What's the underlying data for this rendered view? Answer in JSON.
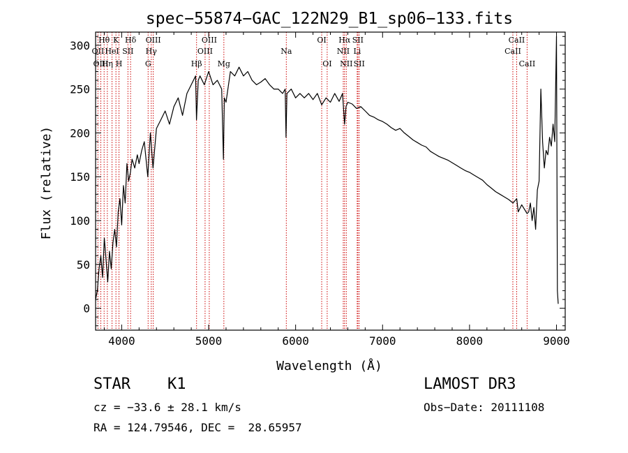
{
  "chart_data": {
    "type": "line",
    "title": "spec−55874−GAC_122N29_B1_sp06−133.fits",
    "xlabel": "Wavelength (Å)",
    "ylabel": "Flux (relative)",
    "xlim": [
      3700,
      9100
    ],
    "ylim": [
      -25,
      315
    ],
    "xticks": [
      4000,
      5000,
      6000,
      7000,
      8000,
      9000
    ],
    "yticks": [
      0,
      50,
      100,
      150,
      200,
      250,
      300
    ],
    "series": [
      {
        "name": "flux",
        "x": [
          3700,
          3720,
          3740,
          3760,
          3780,
          3800,
          3820,
          3840,
          3860,
          3880,
          3900,
          3920,
          3940,
          3960,
          3980,
          4000,
          4020,
          4040,
          4060,
          4080,
          4100,
          4120,
          4150,
          4180,
          4200,
          4230,
          4260,
          4300,
          4330,
          4360,
          4400,
          4450,
          4500,
          4550,
          4600,
          4650,
          4700,
          4750,
          4800,
          4850,
          4860,
          4880,
          4900,
          4950,
          5000,
          5050,
          5100,
          5150,
          5170,
          5180,
          5200,
          5250,
          5300,
          5350,
          5400,
          5450,
          5500,
          5550,
          5600,
          5650,
          5700,
          5750,
          5800,
          5850,
          5880,
          5890,
          5900,
          5950,
          6000,
          6050,
          6100,
          6150,
          6200,
          6250,
          6300,
          6350,
          6400,
          6450,
          6500,
          6540,
          6563,
          6580,
          6600,
          6650,
          6700,
          6750,
          6800,
          6850,
          6900,
          6950,
          7000,
          7050,
          7100,
          7150,
          7200,
          7250,
          7300,
          7350,
          7400,
          7450,
          7500,
          7550,
          7600,
          7650,
          7700,
          7750,
          7800,
          7850,
          7900,
          7950,
          8000,
          8050,
          8100,
          8150,
          8200,
          8250,
          8300,
          8350,
          8400,
          8450,
          8500,
          8542,
          8560,
          8600,
          8662,
          8680,
          8700,
          8720,
          8740,
          8760,
          8780,
          8800,
          8820,
          8840,
          8860,
          8880,
          8900,
          8920,
          8940,
          8960,
          8980,
          9000,
          9010,
          9020
        ],
        "y": [
          10,
          20,
          45,
          60,
          35,
          80,
          55,
          30,
          65,
          45,
          75,
          90,
          70,
          110,
          125,
          95,
          140,
          120,
          165,
          145,
          155,
          170,
          160,
          175,
          165,
          180,
          190,
          150,
          200,
          160,
          205,
          215,
          225,
          210,
          230,
          240,
          220,
          245,
          255,
          265,
          215,
          260,
          265,
          255,
          270,
          255,
          260,
          250,
          170,
          240,
          235,
          270,
          265,
          275,
          265,
          270,
          260,
          255,
          258,
          262,
          255,
          250,
          250,
          245,
          250,
          195,
          245,
          250,
          240,
          245,
          240,
          245,
          238,
          245,
          232,
          240,
          235,
          245,
          236,
          245,
          210,
          230,
          235,
          233,
          228,
          230,
          225,
          220,
          218,
          215,
          213,
          210,
          206,
          203,
          205,
          200,
          196,
          192,
          189,
          186,
          184,
          179,
          176,
          173,
          171,
          169,
          166,
          163,
          160,
          157,
          155,
          152,
          149,
          146,
          141,
          137,
          133,
          130,
          127,
          124,
          120,
          125,
          110,
          118,
          108,
          110,
          120,
          100,
          115,
          90,
          135,
          145,
          250,
          190,
          160,
          180,
          175,
          195,
          185,
          210,
          190,
          310,
          20,
          5
        ]
      }
    ],
    "lines": [
      {
        "label": "Hθ",
        "wl": 3798,
        "row": 0
      },
      {
        "label": "OII",
        "wl": 3727,
        "row": 1
      },
      {
        "label": "OIII",
        "wl": 3760,
        "row": 2
      },
      {
        "label": "K",
        "wl": 3934,
        "row": 0
      },
      {
        "label": "HeI",
        "wl": 3889,
        "row": 1
      },
      {
        "label": "Hη",
        "wl": 3835,
        "row": 2
      },
      {
        "label": "SII",
        "wl": 4072,
        "row": 1
      },
      {
        "label": "H",
        "wl": 3969,
        "row": 2
      },
      {
        "label": "Hδ",
        "wl": 4102,
        "row": 0
      },
      {
        "label": "OIII",
        "wl": 4363,
        "row": 0
      },
      {
        "label": "Hγ",
        "wl": 4340,
        "row": 1
      },
      {
        "label": "G",
        "wl": 4304,
        "row": 2
      },
      {
        "label": "OIII",
        "wl": 5007,
        "row": 0
      },
      {
        "label": "OIII",
        "wl": 4959,
        "row": 1
      },
      {
        "label": "Hβ",
        "wl": 4861,
        "row": 2
      },
      {
        "label": "Mg",
        "wl": 5175,
        "row": 2
      },
      {
        "label": "Na",
        "wl": 5893,
        "row": 1
      },
      {
        "label": "OI",
        "wl": 6300,
        "row": 0
      },
      {
        "label": "OI",
        "wl": 6363,
        "row": 2
      },
      {
        "label": "Hα",
        "wl": 6563,
        "row": 0
      },
      {
        "label": "SII",
        "wl": 6716,
        "row": 0
      },
      {
        "label": "NII",
        "wl": 6548,
        "row": 1
      },
      {
        "label": "Li",
        "wl": 6708,
        "row": 1
      },
      {
        "label": "NII",
        "wl": 6583,
        "row": 2
      },
      {
        "label": "SII",
        "wl": 6731,
        "row": 2
      },
      {
        "label": "CaII",
        "wl": 8542,
        "row": 0
      },
      {
        "label": "CaII",
        "wl": 8498,
        "row": 1
      },
      {
        "label": "CaII",
        "wl": 8662,
        "row": 2
      }
    ]
  },
  "info": {
    "class": "STAR",
    "subclass": "K1",
    "survey": "LAMOST DR3",
    "cz": "cz = −33.6 ± 28.1 km/s",
    "obs_date": "Obs−Date: 20111108",
    "radec": "RA = 124.79546, DEC =  28.65957"
  },
  "colors": {
    "line_marker": "#cc0000",
    "spectrum": "#000000",
    "axes": "#000000"
  }
}
